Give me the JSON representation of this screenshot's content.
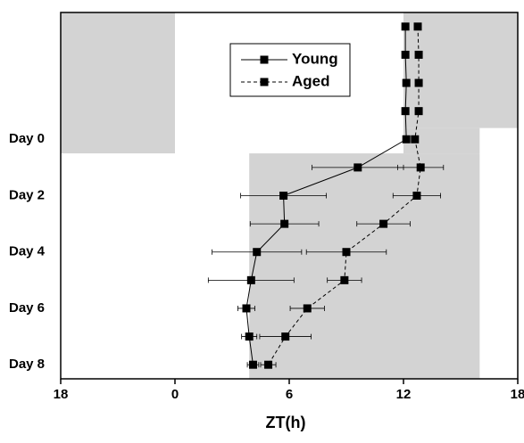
{
  "chart_data": {
    "type": "line",
    "xlabel": "ZT(h)",
    "categories": [
      null,
      null,
      null,
      null,
      "Day 0",
      null,
      "Day 2",
      null,
      "Day 4",
      null,
      "Day 6",
      null,
      "Day 8"
    ],
    "xlim": [
      -6,
      18
    ],
    "xticks": [
      {
        "value": -6,
        "label": "18"
      },
      0,
      6,
      12,
      18
    ],
    "shading": [
      {
        "x": [
          -6,
          0
        ],
        "rows": [
          -0.5,
          4.5
        ]
      },
      {
        "x": [
          12,
          18
        ],
        "rows": [
          -0.5,
          3.6
        ]
      },
      {
        "x": [
          12,
          16
        ],
        "rows": [
          3.6,
          4.5
        ]
      },
      {
        "x": [
          3.9,
          16
        ],
        "rows": [
          4.5,
          12.5
        ]
      }
    ],
    "shading_color": "#d3d3d3",
    "series": [
      {
        "name": "Young",
        "color": "#000000",
        "dash": false,
        "values": [
          12.1,
          12.1,
          12.15,
          12.1,
          12.15,
          9.6,
          5.7,
          5.75,
          4.3,
          4.0,
          3.75,
          3.9,
          4.1
        ],
        "errors": [
          null,
          null,
          null,
          null,
          null,
          2.4,
          2.25,
          1.8,
          2.35,
          2.25,
          0.45,
          0.4,
          0.3
        ]
      },
      {
        "name": "Aged",
        "color": "#000000",
        "dash": true,
        "values": [
          12.75,
          12.8,
          12.8,
          12.8,
          12.6,
          12.9,
          12.7,
          10.95,
          9.0,
          8.9,
          6.95,
          5.8,
          4.9
        ],
        "errors": [
          null,
          null,
          null,
          null,
          null,
          1.2,
          1.25,
          1.4,
          2.1,
          0.9,
          0.9,
          1.35,
          0.4
        ]
      }
    ]
  }
}
